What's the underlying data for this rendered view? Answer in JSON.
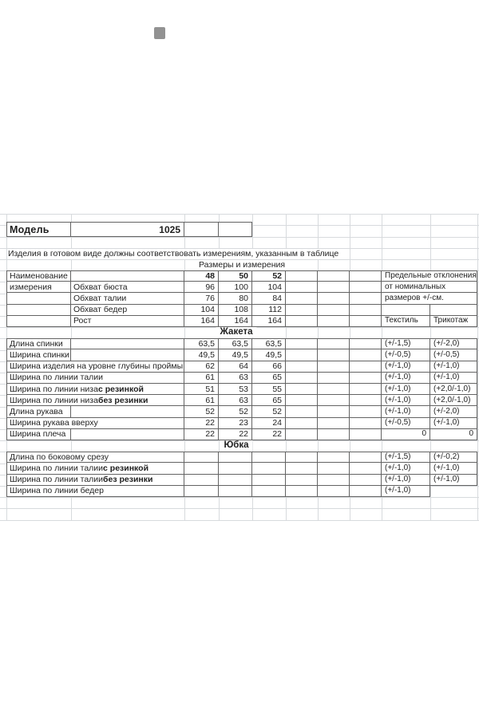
{
  "colors": {
    "background": "#ffffff",
    "gridline": "#d7dadd",
    "cell_border": "#636363",
    "text": "#1f1f1f"
  },
  "model_row": {
    "label": "Модель",
    "value": "1025"
  },
  "note": "Изделия в готовом виде должны соответствовать измерениям, указанным в таблице",
  "sizes_title": "Размеры и измерения",
  "upper": {
    "name_line1": "Наименование",
    "name_line2": "измерения",
    "size_headers": [
      "48",
      "50",
      "52"
    ],
    "rows": [
      {
        "label": "Обхват бюста",
        "values": [
          "96",
          "100",
          "104"
        ]
      },
      {
        "label": "Обхват талии",
        "values": [
          "76",
          "80",
          "84"
        ]
      },
      {
        "label": "Обхват бедер",
        "values": [
          "104",
          "108",
          "112"
        ]
      },
      {
        "label": "Рост",
        "values": [
          "164",
          "164",
          "164"
        ]
      }
    ],
    "deviations_header": [
      "Предельные отклонения",
      "от номинальных",
      "размеров +/-см."
    ],
    "materials": {
      "textile": "Текстиль",
      "knit": "Трикотаж"
    }
  },
  "sections": [
    {
      "title": "Жакета",
      "rows": [
        {
          "label": "Длина спинки",
          "split_label": true,
          "values": [
            "63,5",
            "63,5",
            "63,5"
          ],
          "textile": "(+/-1,5)",
          "knit": "(+/-2,0)"
        },
        {
          "label": "Ширина спинки",
          "split_label": true,
          "values": [
            "49,5",
            "49,5",
            "49,5"
          ],
          "textile": "(+/-0,5)",
          "knit": "(+/-0,5)"
        },
        {
          "label": "Ширина изделия на уровне глубины проймы",
          "values": [
            "62",
            "64",
            "66"
          ],
          "textile": "(+/-1,0)",
          "knit": "(+/-1,0)"
        },
        {
          "label": "Ширина по линии талии",
          "values": [
            "61",
            "63",
            "65"
          ],
          "textile": "(+/-1,0)",
          "knit": "(+/-1,0)"
        },
        {
          "label": "Ширина по линии низа ",
          "label_bold": "с резинкой",
          "values": [
            "51",
            "53",
            "55"
          ],
          "textile": "(+/-1,0)",
          "knit": "(+2,0/-1,0)"
        },
        {
          "label": "Ширина по линии низа ",
          "label_bold": "без резинки",
          "values": [
            "61",
            "63",
            "65"
          ],
          "textile": "(+/-1,0)",
          "knit": "(+2,0/-1,0)"
        },
        {
          "label": "Длина рукава",
          "split_label": true,
          "values": [
            "52",
            "52",
            "52"
          ],
          "textile": "(+/-1,0)",
          "knit": "(+/-2,0)"
        },
        {
          "label": "Ширина рукава вверху",
          "values": [
            "22",
            "23",
            "24"
          ],
          "textile": "(+/-0,5)",
          "knit": "(+/-1,0)"
        },
        {
          "label": "Ширина плеча",
          "split_label": true,
          "values": [
            "22",
            "22",
            "22"
          ],
          "textile": "0",
          "knit": "0",
          "dev_align": "right"
        }
      ]
    },
    {
      "title": "Юбка",
      "rows": [
        {
          "label": "Длина по боковому срезу",
          "values": [
            "",
            "",
            ""
          ],
          "textile": "(+/-1,5)",
          "knit": "(+/-0,2)"
        },
        {
          "label": "Ширина по линии талии ",
          "label_bold": "с резинкой",
          "values": [
            "",
            "",
            ""
          ],
          "textile": "(+/-1,0)",
          "knit": "(+/-1,0)"
        },
        {
          "label": "Ширина по линии талии ",
          "label_bold": "без резинки",
          "values": [
            "",
            "",
            ""
          ],
          "textile": "(+/-1,0)",
          "knit": "(+/-1,0)"
        },
        {
          "label": "Ширина по линии бедер",
          "values": [
            "",
            "",
            ""
          ],
          "textile": "(+/-1,0)",
          "knit": null
        }
      ]
    }
  ]
}
